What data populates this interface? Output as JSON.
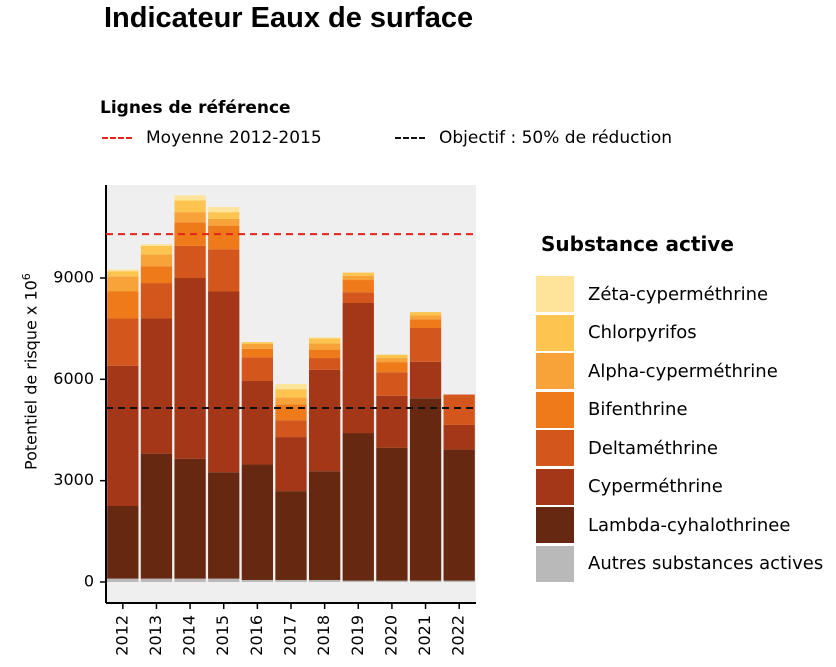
{
  "title": "Indicateur Eaux de surface",
  "reference_lines": {
    "title": "Lignes de référence",
    "items": [
      {
        "label": "Moyenne 2012-2015",
        "color": "#e3231e",
        "value": 10300
      },
      {
        "label": "Objectif : 50% de réduction",
        "color": "#111111",
        "value": 5150
      }
    ]
  },
  "legend": {
    "title": "Substance active",
    "items": [
      {
        "label": "Zéta-cyperméthrine",
        "color": "#fde49a"
      },
      {
        "label": "Chlorpyrifos",
        "color": "#fdc54f"
      },
      {
        "label": "Alpha-cyperméthrine",
        "color": "#f8a23a"
      },
      {
        "label": "Bifenthrine",
        "color": "#ef7a1a"
      },
      {
        "label": "Deltaméthrine",
        "color": "#d3561d"
      },
      {
        "label": "Cyperméthrine",
        "color": "#a33718"
      },
      {
        "label": "Lambda-cyhalothrinee",
        "color": "#662810"
      },
      {
        "label": "Autres substances actives",
        "color": "#b9b9b9"
      }
    ]
  },
  "chart_data": {
    "type": "bar",
    "stacked": true,
    "title": "Indicateur Eaux de surface",
    "xlabel": "",
    "ylabel": "Potentiel de risque  x 10",
    "ylabel_superscript": "6",
    "ylim": [
      0,
      11500
    ],
    "yticks": [
      0,
      3000,
      6000,
      9000
    ],
    "ytick_labels": [
      "0",
      "3000",
      "6000",
      "9000"
    ],
    "grid": false,
    "background": "#efefef",
    "categories": [
      "2012",
      "2013",
      "2014",
      "2015",
      "2016",
      "2017",
      "2018",
      "2019",
      "2020",
      "2021",
      "2022"
    ],
    "series": [
      {
        "name": "Autres substances actives",
        "color": "#b9b9b9",
        "values": [
          100,
          100,
          100,
          100,
          60,
          60,
          60,
          40,
          40,
          40,
          40
        ]
      },
      {
        "name": "Lambda-cyhalothrinee",
        "color": "#662810",
        "values": [
          2150,
          3700,
          3550,
          3150,
          3420,
          2630,
          3220,
          4370,
          3930,
          5400,
          3880
        ]
      },
      {
        "name": "Cyperméthrine",
        "color": "#a33718",
        "values": [
          4150,
          4000,
          5350,
          5350,
          2470,
          1600,
          3000,
          3850,
          1540,
          1080,
          730
        ]
      },
      {
        "name": "Deltaméthrine",
        "color": "#d3561d",
        "values": [
          1400,
          1050,
          950,
          1250,
          700,
          500,
          350,
          320,
          700,
          1000,
          900
        ]
      },
      {
        "name": "Bifenthrine",
        "color": "#ef7a1a",
        "values": [
          800,
          500,
          700,
          700,
          250,
          470,
          250,
          360,
          300,
          250,
          0
        ]
      },
      {
        "name": "Alpha-cyperméthrine",
        "color": "#f8a23a",
        "values": [
          450,
          350,
          300,
          200,
          150,
          200,
          180,
          120,
          120,
          120,
          0
        ]
      },
      {
        "name": "Chlorpyrifos",
        "color": "#fdc54f",
        "values": [
          150,
          250,
          350,
          200,
          50,
          250,
          150,
          100,
          100,
          100,
          0
        ]
      },
      {
        "name": "Zéta-cyperméthrine",
        "color": "#fde49a",
        "values": [
          50,
          50,
          150,
          150,
          0,
          150,
          30,
          0,
          0,
          0,
          0
        ]
      }
    ],
    "reference_lines": [
      {
        "name": "Moyenne 2012-2015",
        "value": 10300,
        "style": "dashed",
        "color": "#e3231e"
      },
      {
        "name": "Objectif : 50% de réduction",
        "value": 5150,
        "style": "dashed",
        "color": "#111111"
      }
    ]
  }
}
